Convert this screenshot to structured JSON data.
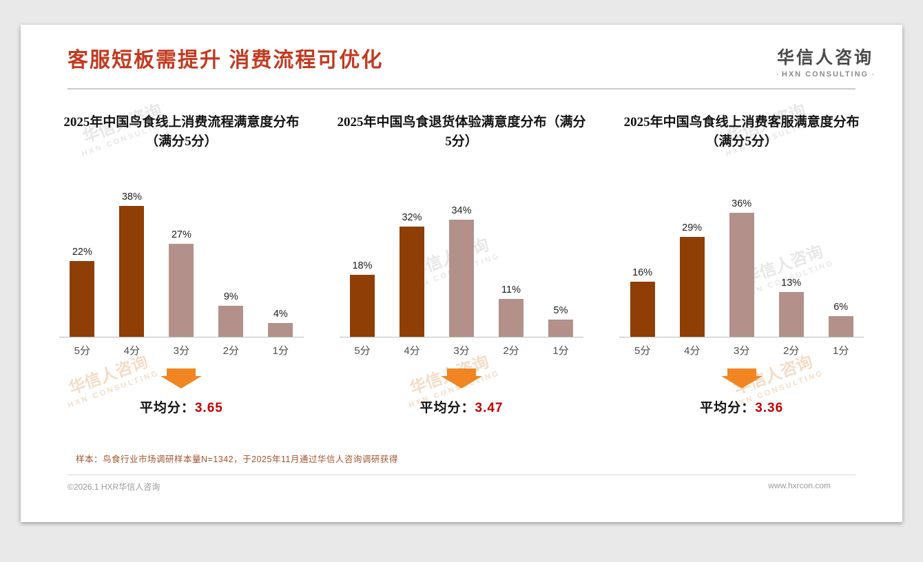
{
  "header": {
    "title": "客服短板需提升 消费流程可优化",
    "logo_name": "华信人咨询",
    "logo_sub": "HXN CONSULTING"
  },
  "watermark": {
    "line1": "华信人咨询",
    "line2": "HXN CONSULTING"
  },
  "chart_data": [
    {
      "type": "bar",
      "title": "2025年中国鸟食线上消费流程满意度分布（满分5分）",
      "categories": [
        "5分",
        "4分",
        "3分",
        "2分",
        "1分"
      ],
      "values": [
        22,
        38,
        27,
        9,
        4
      ],
      "value_labels": [
        "22%",
        "38%",
        "27%",
        "9%",
        "4%"
      ],
      "bar_colors": [
        "#8f3e06",
        "#8f3e06",
        "#b3908a",
        "#b3908a",
        "#b3908a"
      ],
      "ylim": [
        0,
        40
      ],
      "grid": false,
      "average_label": "平均分：",
      "average": "3.65"
    },
    {
      "type": "bar",
      "title": "2025年中国鸟食退货体验满意度分布（满分5分）",
      "categories": [
        "5分",
        "4分",
        "3分",
        "2分",
        "1分"
      ],
      "values": [
        18,
        32,
        34,
        11,
        5
      ],
      "value_labels": [
        "18%",
        "32%",
        "34%",
        "11%",
        "5%"
      ],
      "bar_colors": [
        "#8f3e06",
        "#8f3e06",
        "#b3908a",
        "#b3908a",
        "#b3908a"
      ],
      "ylim": [
        0,
        40
      ],
      "grid": false,
      "average_label": "平均分：",
      "average": "3.47"
    },
    {
      "type": "bar",
      "title": "2025年中国鸟食线上消费客服满意度分布（满分5分）",
      "categories": [
        "5分",
        "4分",
        "3分",
        "2分",
        "1分"
      ],
      "values": [
        16,
        29,
        36,
        13,
        6
      ],
      "value_labels": [
        "16%",
        "29%",
        "36%",
        "13%",
        "6%"
      ],
      "bar_colors": [
        "#8f3e06",
        "#8f3e06",
        "#b3908a",
        "#b3908a",
        "#b3908a"
      ],
      "ylim": [
        0,
        40
      ],
      "grid": false,
      "average_label": "平均分：",
      "average": "3.36"
    }
  ],
  "colors": {
    "title_red": "#c23a20",
    "bar_dark": "#8f3e06",
    "bar_light": "#b3908a",
    "arrow_orange": "#f08522",
    "average_red": "#c00000"
  },
  "footer": {
    "note": "样本：鸟食行业市场调研样本量N=1342，于2025年11月通过华信人咨询调研获得",
    "left": "©2026.1 HXR华信人咨询",
    "right": "www.hxrcon.com"
  }
}
